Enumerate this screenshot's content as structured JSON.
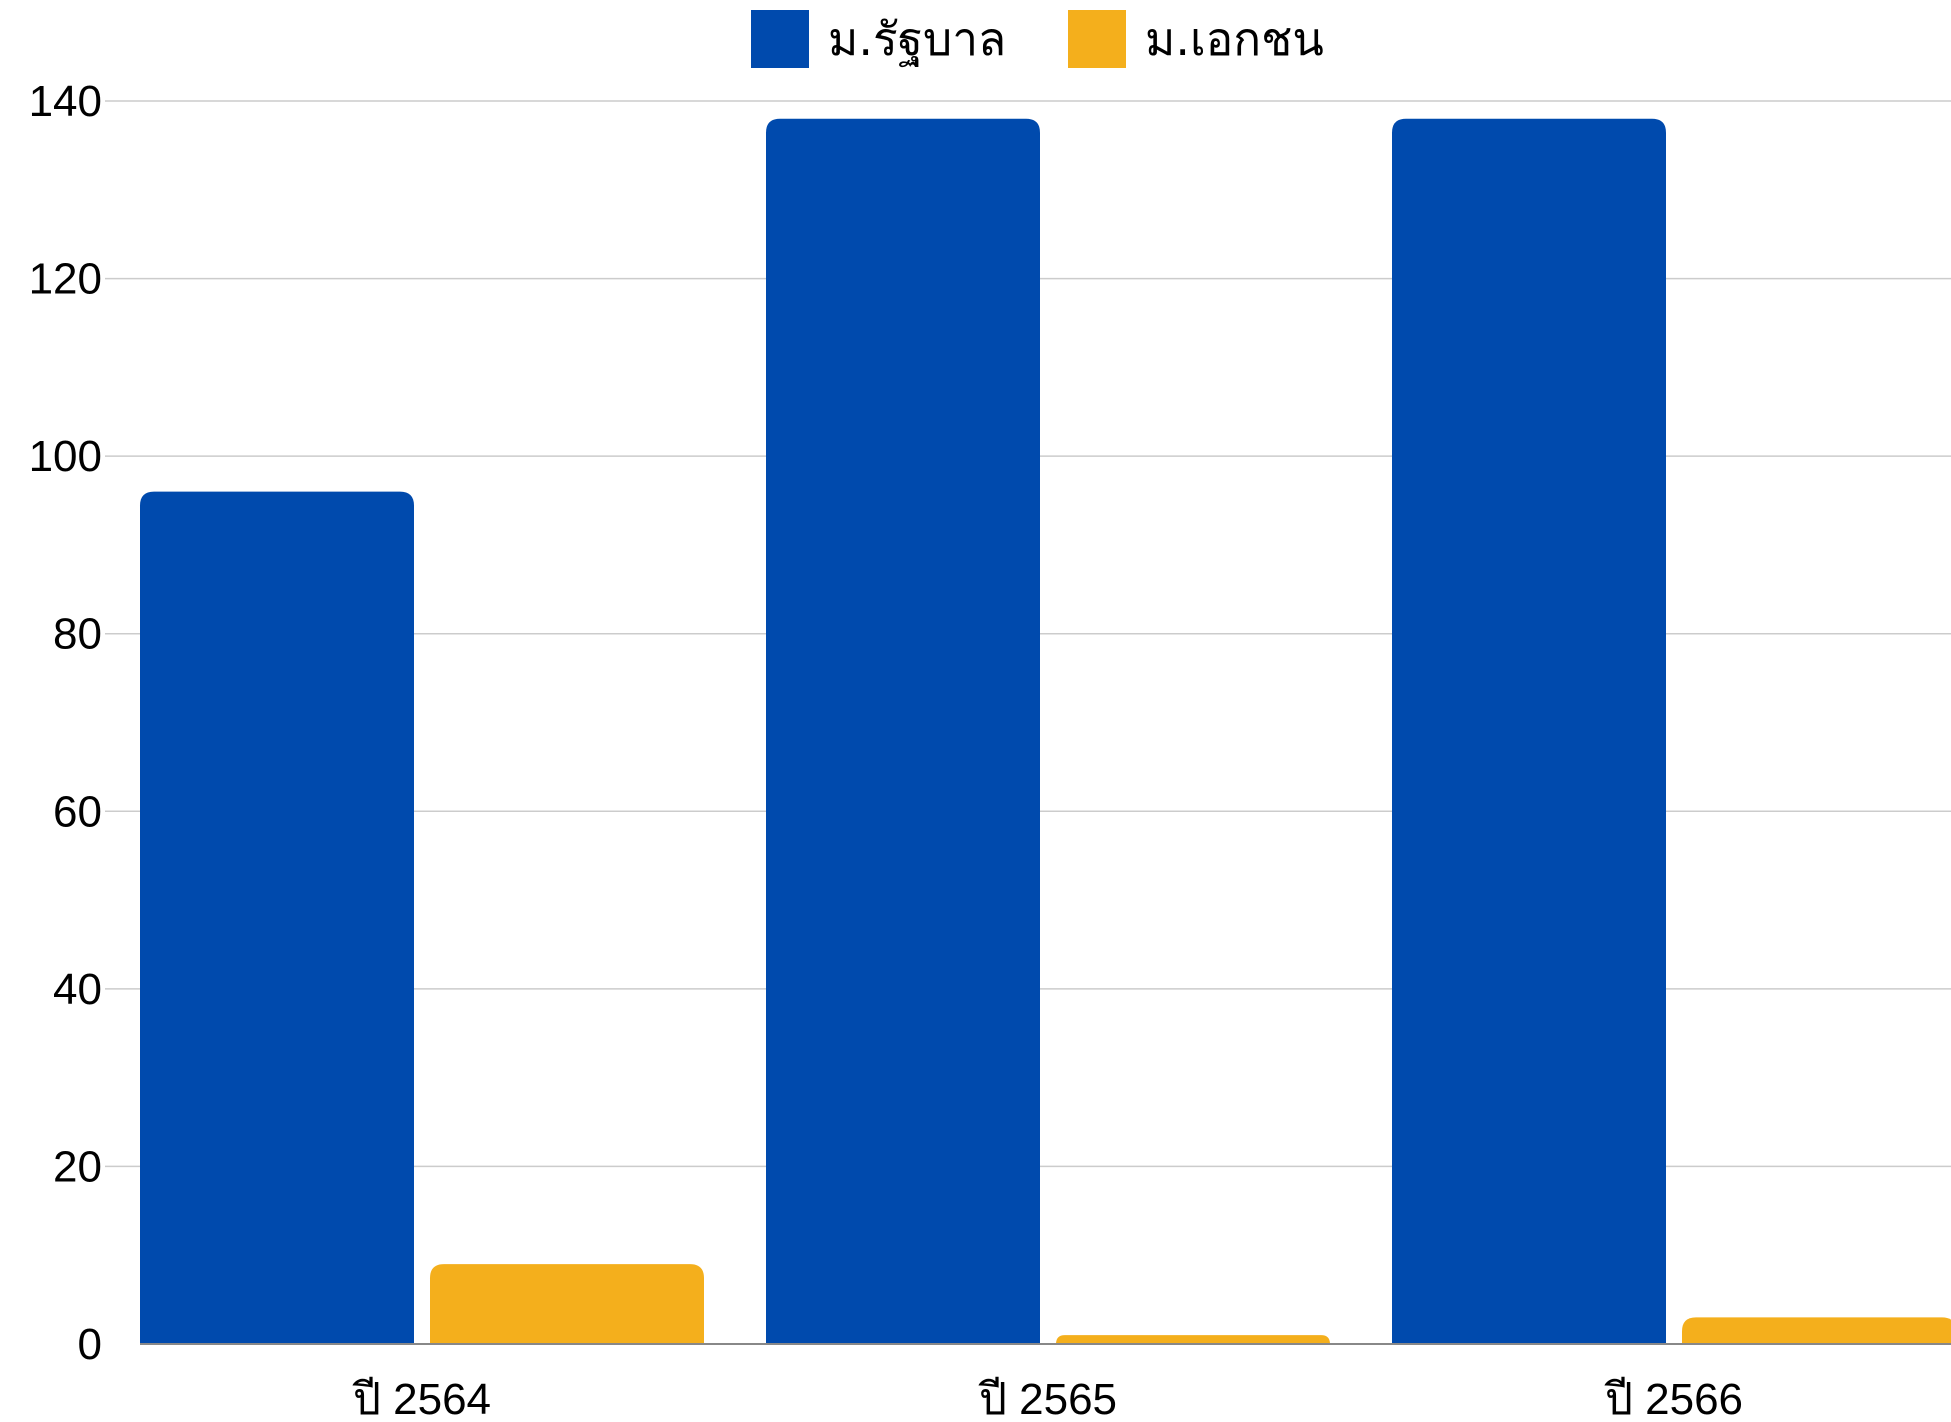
{
  "chart_data": {
    "type": "bar",
    "categories": [
      "ปี 2564",
      "ปี 2565",
      "ปี 2566"
    ],
    "series": [
      {
        "name": "ม.รัฐบาล",
        "values": [
          96,
          138,
          138
        ],
        "color": "#004AAD"
      },
      {
        "name": "ม.เอกชน",
        "values": [
          9,
          1,
          3
        ],
        "color": "#F4AF1C"
      }
    ],
    "yticks": [
      0,
      20,
      40,
      60,
      80,
      100,
      120,
      140
    ],
    "ylim": [
      0,
      140
    ],
    "grid": true,
    "legend": "top-center",
    "gridline_color": "#CCCCCC",
    "axis_color": "#888888"
  }
}
